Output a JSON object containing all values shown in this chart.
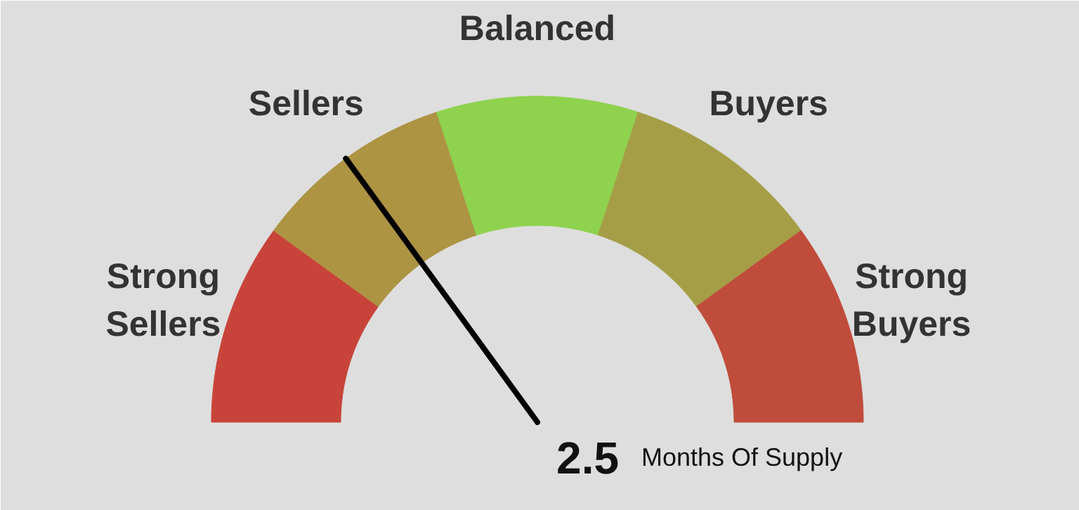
{
  "chart_data": {
    "type": "donut",
    "categories": [
      "Strong Sellers",
      "Sellers",
      "Balanced",
      "Buyers",
      "Strong Buyers"
    ],
    "values": [
      20,
      20,
      20,
      20,
      20
    ],
    "colors": [
      "#c8443a",
      "#ad9443",
      "#8fd24e",
      "#a59e47",
      "#c04c3b"
    ],
    "needle": "Sellers",
    "annotations": [
      "2.5",
      "Months Of Supply"
    ]
  }
}
